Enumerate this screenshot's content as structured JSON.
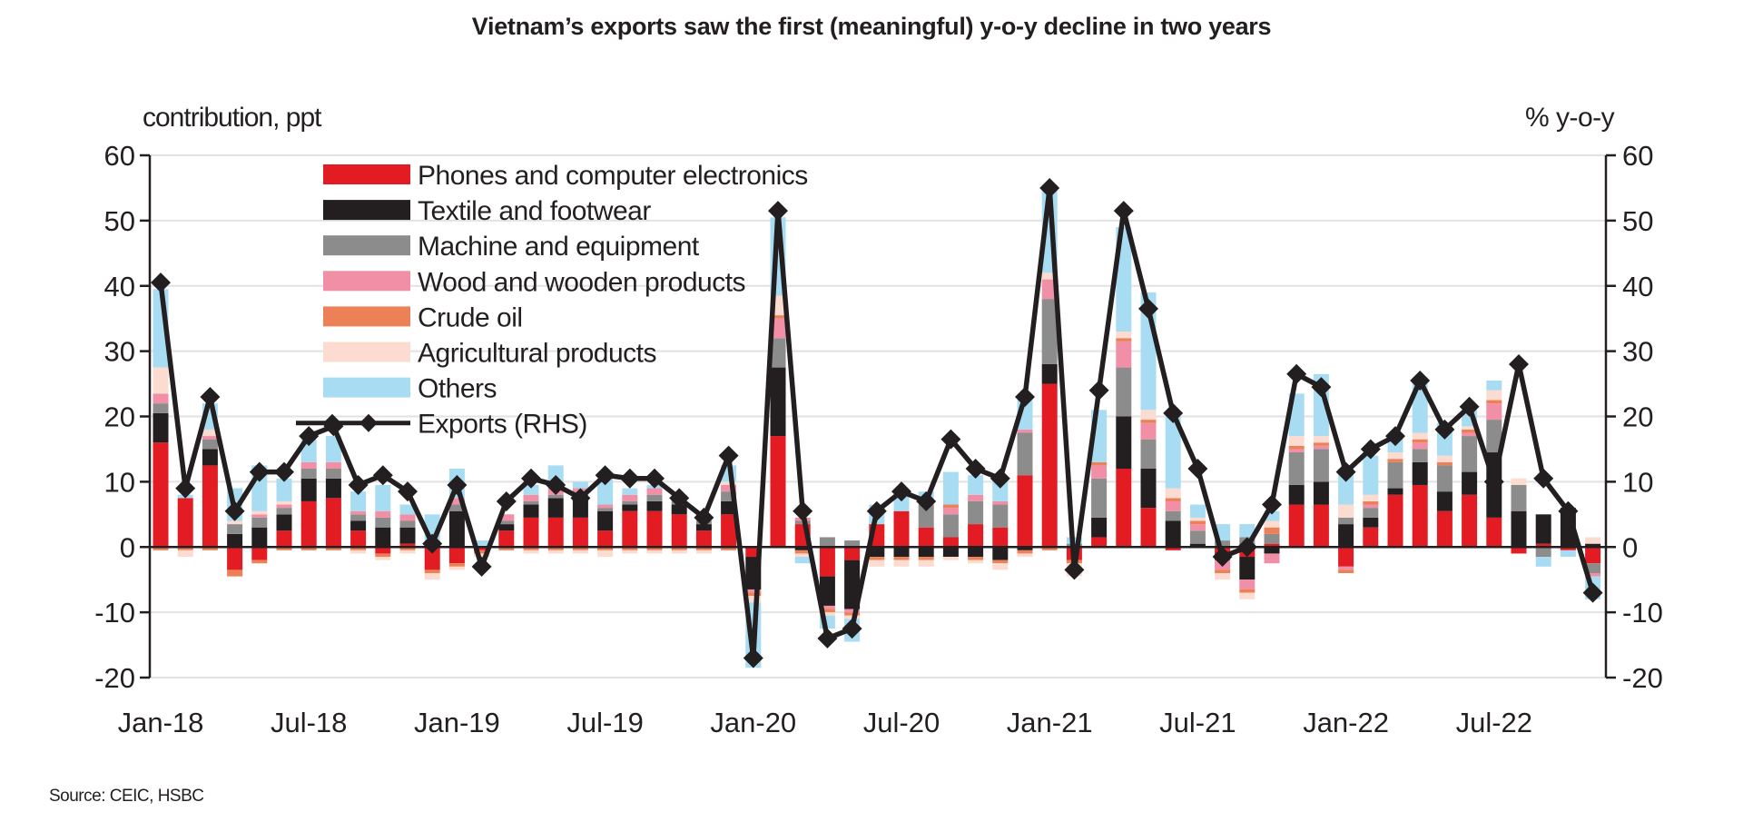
{
  "chart_data": {
    "type": "bar",
    "subtype": "stacked bar + line (dual axis)",
    "title": "Vietnam’s exports saw the first (meaningful) y-o-y decline in two years",
    "ylabel_left": "contribution,  ppt",
    "ylabel_right": "% y-o-y",
    "ylim_left": [
      -20,
      60
    ],
    "ylim_right": [
      -20,
      60
    ],
    "yticks": [
      60,
      50,
      40,
      30,
      20,
      10,
      0,
      -10,
      -20
    ],
    "grid": true,
    "legend_position": "top-left",
    "source": "Source: CEIC, HSBC",
    "x_tick_labels": [
      "Jan-18",
      "Jul-18",
      "Jan-19",
      "Jul-19",
      "Jan-20",
      "Jul-20",
      "Jan-21",
      "Jul-21",
      "Jan-22",
      "Jul-22"
    ],
    "x_tick_month_index": [
      0,
      6,
      12,
      18,
      24,
      30,
      36,
      42,
      48,
      54
    ],
    "months": [
      "Jan-18",
      "Feb-18",
      "Mar-18",
      "Apr-18",
      "May-18",
      "Jun-18",
      "Jul-18",
      "Aug-18",
      "Sep-18",
      "Oct-18",
      "Nov-18",
      "Dec-18",
      "Jan-19",
      "Feb-19",
      "Mar-19",
      "Apr-19",
      "May-19",
      "Jun-19",
      "Jul-19",
      "Aug-19",
      "Sep-19",
      "Oct-19",
      "Nov-19",
      "Dec-19",
      "Jan-20",
      "Feb-20",
      "Mar-20",
      "Apr-20",
      "May-20",
      "Jun-20",
      "Jul-20",
      "Aug-20",
      "Sep-20",
      "Oct-20",
      "Nov-20",
      "Dec-20",
      "Jan-21",
      "Feb-21",
      "Mar-21",
      "Apr-21",
      "May-21",
      "Jun-21",
      "Jul-21",
      "Aug-21",
      "Sep-21",
      "Oct-21",
      "Nov-21",
      "Dec-21",
      "Jan-22",
      "Feb-22",
      "Mar-22",
      "Apr-22",
      "May-22",
      "Jun-22",
      "Jul-22",
      "Aug-22",
      "Sep-22",
      "Oct-22",
      "Nov-22"
    ],
    "series": [
      {
        "name": "Phones and computer electronics",
        "color": "#e31b23",
        "axis": "left",
        "values": [
          16,
          7.5,
          12.5,
          -3.5,
          -2,
          2.5,
          7,
          7.5,
          2.5,
          -1,
          0.5,
          -3.5,
          -2.5,
          -0.5,
          2.5,
          4.5,
          4.5,
          4.5,
          2.5,
          5.5,
          5.5,
          5,
          2.5,
          5,
          -1.5,
          17,
          3.5,
          -4.5,
          -2,
          3.5,
          5.5,
          3,
          1.5,
          3.5,
          3,
          11,
          25,
          -2,
          1.5,
          12,
          6,
          -0.5,
          0,
          -1,
          -1.5,
          0.5,
          6.5,
          6.5,
          -3,
          3,
          8,
          9.5,
          5.5,
          8,
          4.5,
          -1,
          0.5,
          -0.5,
          -2.5
        ]
      },
      {
        "name": "Textile and footwear",
        "color": "#231f20",
        "axis": "left",
        "values": [
          4.5,
          0,
          2.5,
          2,
          3,
          2.5,
          3.5,
          3,
          1.5,
          3,
          2.5,
          0,
          5.5,
          0,
          1,
          2,
          3,
          3,
          3,
          1,
          1.5,
          1.5,
          1,
          2,
          -5,
          10.5,
          -0.5,
          -4.5,
          -7.5,
          -1.5,
          -1.5,
          -1.5,
          -1.5,
          -1.5,
          -2,
          -0.5,
          3,
          0,
          3,
          8,
          6,
          4,
          0.5,
          -1,
          -3.5,
          -1,
          3,
          3.5,
          3.5,
          1.5,
          1,
          3.5,
          3,
          3.5,
          10,
          5.5,
          4.5,
          6,
          0.5
        ]
      },
      {
        "name": "Machine and equipment",
        "color": "#8c8c8c",
        "axis": "left",
        "values": [
          1.5,
          0,
          1.5,
          1.5,
          1.5,
          1,
          1.5,
          1.5,
          1,
          1.5,
          1,
          0.5,
          1,
          0,
          0.5,
          0.5,
          0.5,
          0.5,
          0.5,
          0.5,
          1,
          1,
          0.5,
          1.5,
          0,
          4.5,
          0.5,
          1.5,
          1,
          0,
          0,
          3.5,
          3.5,
          3.5,
          3.5,
          6.5,
          10,
          0.5,
          6,
          7.5,
          4.5,
          1.5,
          2,
          1,
          1.5,
          1.5,
          5,
          5,
          1,
          1.5,
          4,
          2,
          4,
          5.5,
          5,
          4,
          -1.5,
          0,
          -1.5
        ]
      },
      {
        "name": "Wood and wooden products",
        "color": "#f08fa6",
        "axis": "left",
        "values": [
          1.5,
          0,
          0.5,
          0,
          0.5,
          0.5,
          1,
          1,
          0.5,
          1,
          1,
          0.5,
          1,
          0,
          1,
          1,
          1,
          1,
          0.5,
          1,
          1,
          0.5,
          0,
          1,
          -0.5,
          3,
          0.5,
          -0.5,
          -0.5,
          0,
          0,
          0,
          1,
          1,
          0.5,
          0.5,
          3,
          0,
          2,
          4,
          2.5,
          1.5,
          1,
          -1.5,
          -1.5,
          -1.5,
          0.5,
          0.5,
          -0.5,
          0.5,
          0,
          1,
          0,
          0.5,
          2.5,
          0,
          0,
          0,
          -0.5
        ]
      },
      {
        "name": "Crude oil",
        "color": "#ec8057",
        "axis": "left",
        "values": [
          -0.5,
          -0.5,
          -0.5,
          -1,
          -0.5,
          -0.5,
          -0.5,
          -0.5,
          -0.5,
          -0.5,
          -0.5,
          -0.5,
          -0.5,
          -0.5,
          -0.5,
          -0.5,
          -0.5,
          -0.5,
          -0.5,
          -0.5,
          -0.5,
          -0.5,
          -0.5,
          -0.5,
          -0.5,
          0.5,
          -0.5,
          -0.5,
          -0.5,
          -0.5,
          -0.5,
          -0.5,
          0.5,
          -0.5,
          -0.5,
          -0.5,
          -0.5,
          -0.5,
          0.5,
          0.5,
          0.5,
          0.5,
          0.5,
          -0.5,
          -0.5,
          1,
          0.5,
          0.5,
          -0.5,
          0.5,
          0.5,
          0.5,
          0.5,
          0.5,
          0.5,
          0,
          0,
          0,
          0
        ]
      },
      {
        "name": "Agricultural products",
        "color": "#fcdcd0",
        "axis": "left",
        "values": [
          4,
          -1,
          1,
          0.5,
          0.5,
          0.5,
          0,
          0,
          -0.5,
          -0.5,
          -0.5,
          -1,
          -0.5,
          -0.5,
          0,
          -0.5,
          -0.5,
          -0.5,
          -1,
          -0.5,
          -0.5,
          -0.5,
          -0.5,
          0.5,
          -1,
          3,
          -0.5,
          -0.5,
          -0.5,
          -1,
          -1,
          -1,
          -0.5,
          -0.5,
          -1,
          -0.5,
          1,
          -2,
          0,
          1,
          1.5,
          1.5,
          0.5,
          -1,
          -1,
          1,
          1.5,
          1,
          2,
          1,
          1,
          1,
          1,
          0.5,
          1.5,
          1,
          0,
          0,
          1
        ]
      },
      {
        "name": "Others",
        "color": "#a8dcf2",
        "axis": "left",
        "values": [
          12,
          0.5,
          4,
          5,
          7,
          3.5,
          3.5,
          4,
          3,
          4,
          1.5,
          4,
          4.5,
          1,
          0,
          1.5,
          3.5,
          1,
          4,
          1,
          0.5,
          0,
          0.5,
          2.5,
          -10,
          12,
          -1,
          -2,
          -3.5,
          3,
          3,
          2,
          5,
          3,
          3.5,
          4.5,
          13.5,
          1,
          8,
          16,
          18,
          11,
          2,
          2.5,
          2,
          1.5,
          6.5,
          9.5,
          5.5,
          6,
          2.5,
          8.5,
          5,
          2.5,
          1.5,
          0,
          -1.5,
          -1,
          -3.5
        ]
      }
    ],
    "line": {
      "name": "Exports (RHS)",
      "color": "#231f20",
      "axis": "right",
      "marker": "diamond",
      "values": [
        40.5,
        9,
        23,
        5.5,
        11.5,
        11.5,
        17,
        18.5,
        9.5,
        11,
        8.5,
        0.5,
        9.5,
        -3,
        7,
        10.5,
        9.5,
        7.5,
        11,
        10.5,
        10.5,
        7.5,
        4.5,
        14,
        -17,
        51.5,
        5.5,
        -14,
        -12.5,
        5.5,
        8.5,
        7,
        16.5,
        12,
        10.5,
        23,
        55,
        -3.5,
        24,
        51.5,
        36.5,
        20.5,
        12,
        -1.5,
        0,
        6.5,
        26.5,
        24.5,
        11.5,
        15,
        17,
        25.5,
        18,
        21.5,
        10,
        28,
        10.5,
        5.5,
        -7
      ]
    }
  }
}
